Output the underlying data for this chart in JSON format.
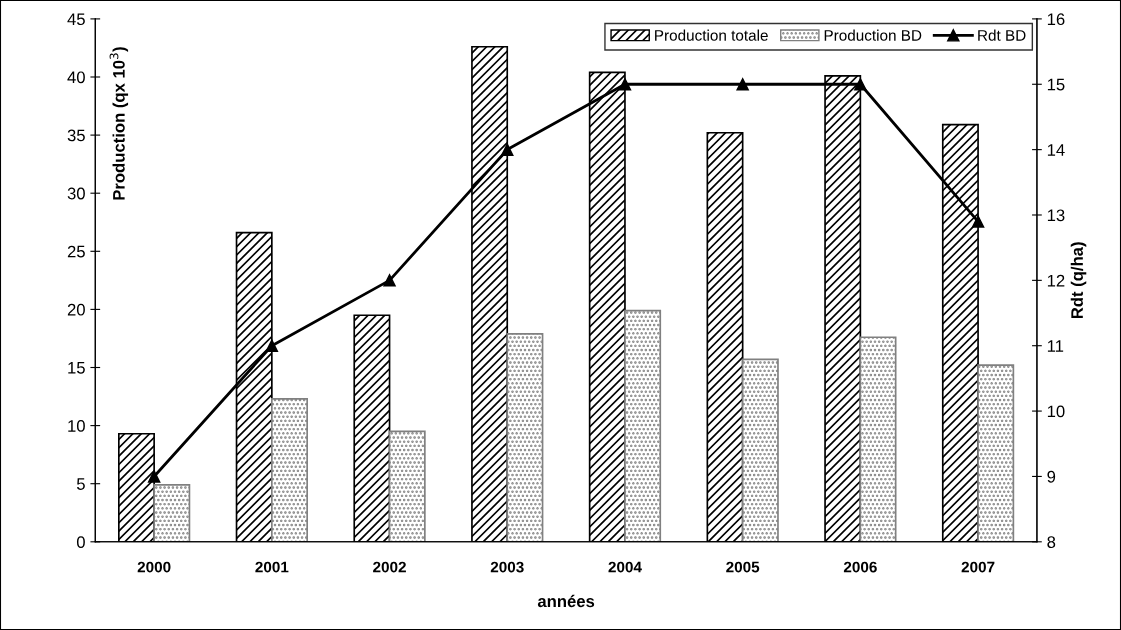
{
  "chart_data": {
    "type": "bar",
    "xlabel": "années",
    "ylabel": "Production (qx 10$^{3}$)",
    "y2label": "Rdt (q/ha)",
    "categories": [
      "2000",
      "2001",
      "2002",
      "2003",
      "2004",
      "2005",
      "2006",
      "2007"
    ],
    "series": [
      {
        "name": "Production totale",
        "color": "#000000",
        "values": [
          9.3,
          26.6,
          19.5,
          42.6,
          40.4,
          35.2,
          40.1,
          35.9
        ]
      },
      {
        "name": "Production BD",
        "color": "#808080",
        "values": [
          4.9,
          12.3,
          9.5,
          17.9,
          19.9,
          15.7,
          17.6,
          15.2
        ]
      },
      {
        "name": "Rdt BD",
        "type": "line",
        "axis": "y2",
        "color": "#000000",
        "marker": "triangle",
        "values": [
          9,
          11,
          12,
          14,
          15,
          15,
          15,
          12.9
        ]
      }
    ],
    "ylim": [
      0,
      45
    ],
    "yticks": [
      0,
      5,
      10,
      15,
      20,
      25,
      30,
      35,
      40,
      45
    ],
    "y2lim": [
      8,
      16
    ],
    "y2ticks": [
      8,
      9,
      10,
      11,
      12,
      13,
      14,
      15,
      16
    ],
    "grid": false,
    "legend": "top right"
  }
}
